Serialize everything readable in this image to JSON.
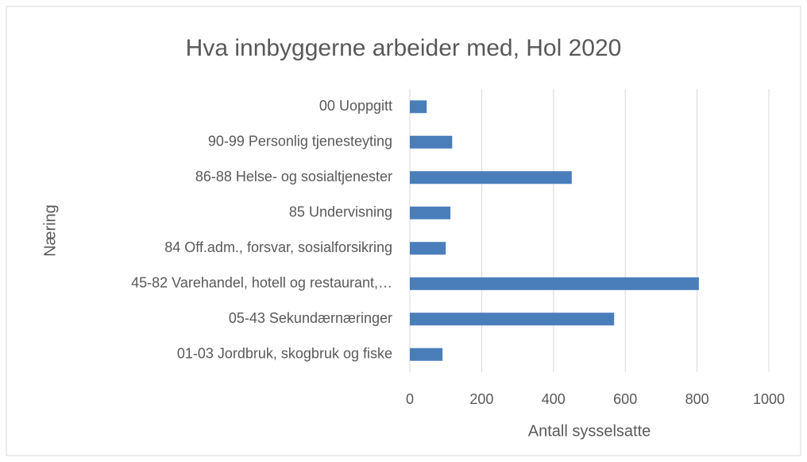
{
  "chart_data": {
    "type": "barh",
    "title": "Hva innbyggerne arbeider med, Hol 2020",
    "x_label": "Antall sysselsatte",
    "y_label": "Næring",
    "categories": [
      "00 Uoppgitt",
      "90-99 Personlig tjenesteyting",
      "86-88 Helse- og sosialtjenester",
      "85 Undervisning",
      "84 Off.adm., forsvar, sosialforsikring",
      "45-82 Varehandel, hotell og restaurant,…",
      "05-43 Sekundærnæringer",
      "01-03 Jordbruk, skogbruk og fiske"
    ],
    "values": [
      47,
      118,
      451,
      113,
      100,
      805,
      569,
      91
    ],
    "color": "#4a7ebb",
    "xlim": [
      0,
      1000
    ],
    "xticks": [
      0,
      200,
      400,
      600,
      800,
      1000
    ],
    "grid": true
  }
}
